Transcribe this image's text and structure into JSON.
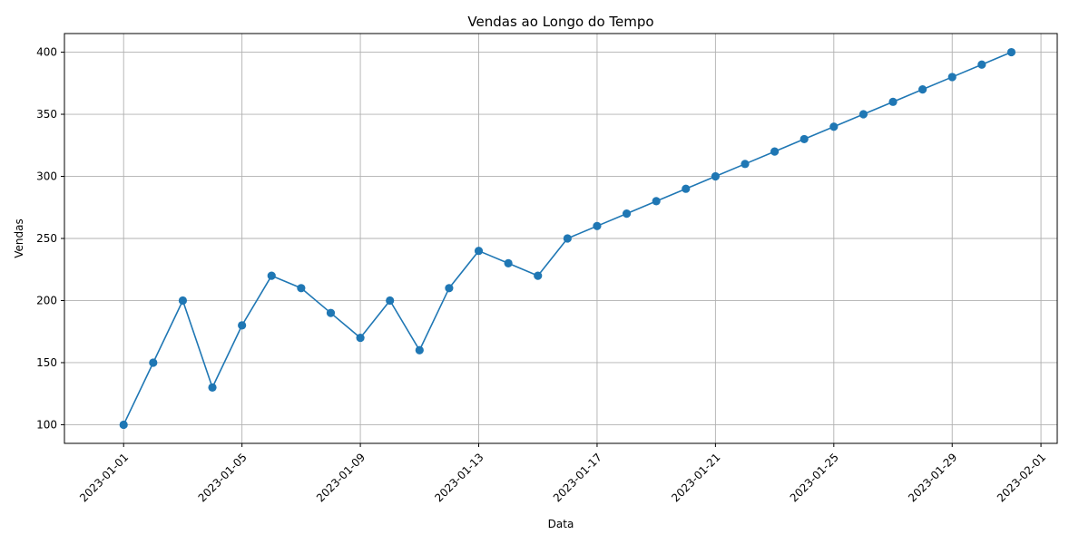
{
  "chart_data": {
    "type": "line",
    "title": "Vendas ao Longo do Tempo",
    "xlabel": "Data",
    "ylabel": "Vendas",
    "x": [
      "2023-01-01",
      "2023-01-02",
      "2023-01-03",
      "2023-01-04",
      "2023-01-05",
      "2023-01-06",
      "2023-01-07",
      "2023-01-08",
      "2023-01-09",
      "2023-01-10",
      "2023-01-11",
      "2023-01-12",
      "2023-01-13",
      "2023-01-14",
      "2023-01-15",
      "2023-01-16",
      "2023-01-17",
      "2023-01-18",
      "2023-01-19",
      "2023-01-20",
      "2023-01-21",
      "2023-01-22",
      "2023-01-23",
      "2023-01-24",
      "2023-01-25",
      "2023-01-26",
      "2023-01-27",
      "2023-01-28",
      "2023-01-29",
      "2023-01-30",
      "2023-01-31"
    ],
    "series": [
      {
        "values": [
          100,
          150,
          200,
          130,
          180,
          220,
          210,
          190,
          170,
          200,
          160,
          210,
          240,
          230,
          220,
          250,
          260,
          270,
          280,
          290,
          300,
          310,
          320,
          330,
          340,
          350,
          360,
          370,
          380,
          390,
          400
        ],
        "color": "#1f77b4",
        "marker": "circle"
      }
    ],
    "x_ticks": [
      "2023-01-01",
      "2023-01-05",
      "2023-01-09",
      "2023-01-13",
      "2023-01-17",
      "2023-01-21",
      "2023-01-25",
      "2023-01-29",
      "2023-02-01"
    ],
    "y_ticks": [
      100,
      150,
      200,
      250,
      300,
      350,
      400
    ],
    "xlim": [
      "2022-12-30",
      "2023-02-01"
    ],
    "ylim": [
      85,
      415
    ],
    "grid": true
  }
}
